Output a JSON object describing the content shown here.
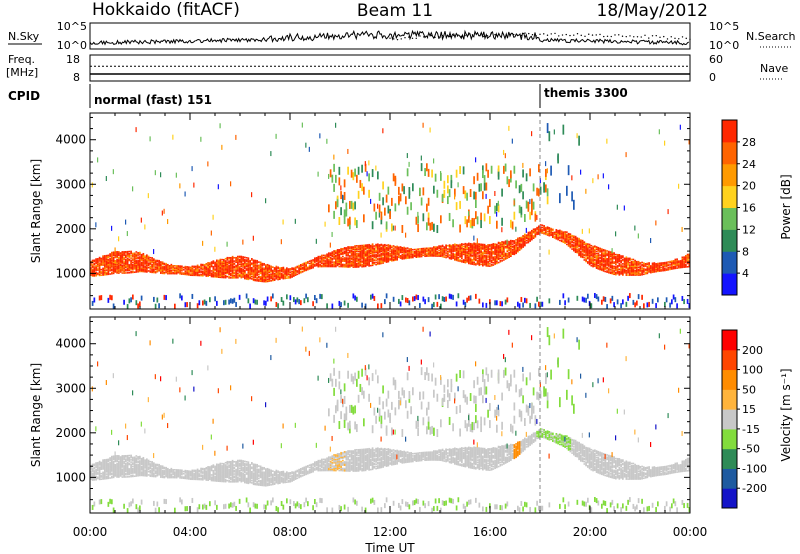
{
  "header": {
    "station": "Hokkaido (fitACF)",
    "beam": "Beam 11",
    "date": "18/May/2012"
  },
  "noise_panel": {
    "left_label": "N.Sky",
    "right_label": "N.Search",
    "left_ticks": [
      "10^5",
      "10^0"
    ],
    "right_ticks": [
      "10^5",
      "10^0"
    ]
  },
  "freq_panel": {
    "left_label_1": "Freq.",
    "left_label_2": "[MHz]",
    "right_label": "Nave",
    "left_ticks": [
      "18",
      "8"
    ],
    "right_ticks": [
      "60",
      "0"
    ],
    "freq_mhz": 10.7,
    "nave": 34
  },
  "cpid_panel": {
    "label": "CPID",
    "programs": [
      {
        "name": "normal (fast) 151",
        "start_hour": 0
      },
      {
        "name": "themis 3300",
        "start_hour": 18
      }
    ]
  },
  "x_axis": {
    "label": "Time UT",
    "ticks": [
      "00:00",
      "04:00",
      "08:00",
      "12:00",
      "16:00",
      "20:00",
      "00:00"
    ],
    "range_hours": [
      0,
      24
    ]
  },
  "power_panel": {
    "ylabel": "Slant Range [km]",
    "y_ticks": [
      "1000",
      "2000",
      "3000",
      "4000"
    ],
    "colorbar_label": "Power [dB]",
    "colorbar_ticks": [
      "28",
      "24",
      "20",
      "16",
      "12",
      "8",
      "4"
    ],
    "colors": [
      "#1414ff",
      "#1e5ab4",
      "#2e8b57",
      "#6abf5a",
      "#ffd21e",
      "#ff9a00",
      "#ff6400",
      "#ff2800"
    ]
  },
  "velocity_panel": {
    "ylabel": "Slant Range [km]",
    "y_ticks": [
      "1000",
      "2000",
      "3000",
      "4000"
    ],
    "colorbar_label": "Velocity [m s⁻¹]",
    "colorbar_ticks": [
      "200",
      "100",
      "50",
      "15",
      "-15",
      "-50",
      "-100",
      "-200"
    ],
    "colors": [
      "#ff0000",
      "#ff4600",
      "#ff8c00",
      "#ffb43c",
      "#c8c8c8",
      "#82dc3c",
      "#2e8b57",
      "#1e5aa0",
      "#1414c8"
    ]
  },
  "chart_data": {
    "type": "heatmap",
    "title": "Hokkaido (fitACF)",
    "x_units": "hours UT",
    "y_units": "slant range km",
    "xlim": [
      0,
      24
    ],
    "ylim": [
      200,
      4600
    ],
    "main_echo_band": {
      "description": "main scatter band slant range center (km) vs time (h)",
      "x": [
        0,
        1,
        2,
        3,
        4,
        5,
        6,
        7,
        8,
        9,
        10,
        11,
        12,
        13,
        14,
        15,
        16,
        17,
        18,
        19,
        20,
        21,
        22,
        23,
        24
      ],
      "y": [
        1100,
        1250,
        1250,
        1100,
        1050,
        1100,
        1150,
        1000,
        1000,
        1250,
        1350,
        1400,
        1450,
        1450,
        1500,
        1450,
        1400,
        1600,
        2000,
        1800,
        1400,
        1200,
        1100,
        1150,
        1300
      ]
    },
    "power_range_db": [
      0,
      32
    ],
    "velocity_range_ms": [
      -200,
      200
    ]
  }
}
